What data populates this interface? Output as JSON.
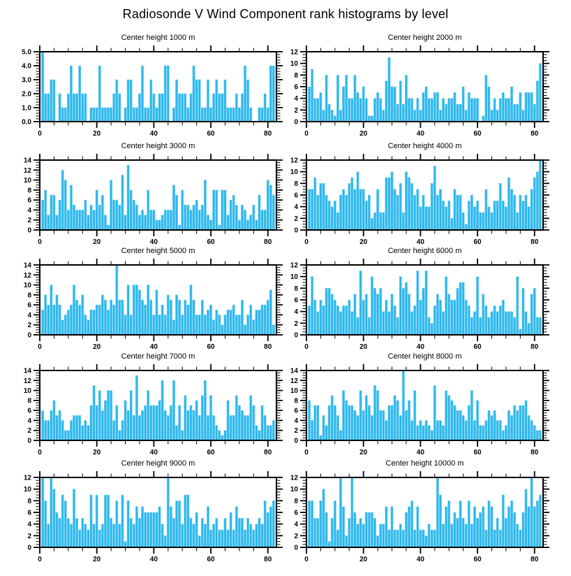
{
  "chart_data": {
    "type": "bar",
    "figure_title": "Radiosonde V Wind Component rank histograms by level",
    "bar_color": "#2AB7EE",
    "bar_edge_color": "#8FD9F4",
    "axis_color": "#000000",
    "background_color": "#ffffff",
    "grid": false,
    "legend": null,
    "xlabel": "",
    "ylabel": "",
    "xlim": [
      0,
      83
    ],
    "x_major_ticks": [
      0,
      20,
      40,
      60,
      80
    ],
    "x_minor_step": 5,
    "layout": "5 rows x 2 columns of rank histograms",
    "subplots": [
      {
        "title": "Center height 1000 m",
        "ymax": 5,
        "ystep": 1,
        "ydecimals": 1,
        "yminor_div": 5,
        "ytick_labels": [
          "0.0",
          "1.0",
          "2.0",
          "3.0",
          "4.0",
          "5.0"
        ],
        "values": [
          5,
          2,
          2,
          3,
          3,
          0,
          2,
          1,
          1,
          2,
          4,
          2,
          2,
          4,
          2,
          2,
          0,
          1,
          1,
          1,
          4,
          1,
          1,
          1,
          1,
          2,
          3,
          2,
          0,
          1,
          3,
          3,
          1,
          1,
          2,
          4,
          1,
          1,
          3,
          2,
          1,
          2,
          2,
          4,
          4,
          0,
          1,
          3,
          2,
          2,
          2,
          1,
          2,
          4,
          3,
          3,
          1,
          1,
          3,
          1,
          2,
          3,
          2,
          2,
          3,
          1,
          1,
          1,
          2,
          1,
          2,
          4,
          3,
          1,
          0,
          0,
          1,
          1,
          2,
          1,
          4,
          4
        ]
      },
      {
        "title": "Center height 2000 m",
        "ymax": 12,
        "ystep": 2,
        "ydecimals": 0,
        "yminor_div": 4,
        "ytick_labels": [
          "0",
          "2",
          "4",
          "6",
          "8",
          "10",
          "12"
        ],
        "values": [
          6,
          9,
          4,
          4,
          5,
          2,
          8,
          3,
          2,
          1,
          8,
          2,
          6,
          8,
          4,
          4,
          8,
          5,
          4,
          6,
          4,
          1,
          1,
          4,
          5,
          4,
          2,
          7,
          11,
          6,
          6,
          3,
          7,
          3,
          8,
          4,
          4,
          2,
          4,
          2,
          5,
          6,
          4,
          4,
          5,
          5,
          2,
          4,
          3,
          4,
          4,
          5,
          3,
          3,
          6,
          2,
          5,
          4,
          4,
          4,
          0,
          1,
          8,
          6,
          2,
          4,
          2,
          4,
          5,
          4,
          4,
          6,
          3,
          3,
          5,
          2,
          5,
          5,
          5,
          3,
          7,
          10
        ]
      },
      {
        "title": "Center height 3000 m",
        "ymax": 14,
        "ystep": 2,
        "ydecimals": 0,
        "yminor_div": 4,
        "ytick_labels": [
          "0",
          "2",
          "4",
          "6",
          "8",
          "10",
          "12",
          "14"
        ],
        "values": [
          6,
          8,
          3,
          7,
          7,
          3,
          6,
          12,
          10,
          4,
          9,
          5,
          4,
          4,
          4,
          6,
          3,
          5,
          4,
          8,
          5,
          7,
          3,
          1,
          10,
          6,
          6,
          5,
          11,
          3,
          13,
          8,
          6,
          5,
          3,
          4,
          3,
          8,
          4,
          4,
          2,
          2,
          3,
          4,
          4,
          4,
          9,
          7,
          1,
          8,
          5,
          5,
          4,
          5,
          6,
          4,
          5,
          10,
          3,
          2,
          8,
          8,
          1,
          8,
          8,
          3,
          6,
          7,
          5,
          2,
          5,
          4,
          2,
          3,
          5,
          2,
          7,
          4,
          4,
          10,
          9,
          7
        ]
      },
      {
        "title": "Center height 4000 m",
        "ymax": 12,
        "ystep": 2,
        "ydecimals": 0,
        "yminor_div": 4,
        "ytick_labels": [
          "0",
          "2",
          "4",
          "6",
          "8",
          "10",
          "12"
        ],
        "values": [
          7,
          7,
          9,
          6,
          8,
          8,
          6,
          5,
          4,
          5,
          3,
          6,
          7,
          6,
          8,
          9,
          7,
          10,
          7,
          7,
          5,
          6,
          2,
          3,
          7,
          3,
          3,
          9,
          9,
          10,
          7,
          6,
          8,
          3,
          10,
          9,
          8,
          6,
          7,
          4,
          6,
          4,
          4,
          8,
          11,
          6,
          7,
          5,
          4,
          5,
          2,
          7,
          6,
          6,
          3,
          1,
          5,
          6,
          4,
          5,
          3,
          3,
          7,
          4,
          3,
          5,
          5,
          8,
          5,
          4,
          9,
          7,
          6,
          3,
          6,
          5,
          6,
          4,
          7,
          9,
          10,
          12
        ]
      },
      {
        "title": "Center height 5000 m",
        "ymax": 14,
        "ystep": 2,
        "ydecimals": 0,
        "yminor_div": 4,
        "ytick_labels": [
          "0",
          "2",
          "4",
          "6",
          "8",
          "10",
          "12",
          "14"
        ],
        "values": [
          5,
          8,
          6,
          10,
          6,
          8,
          6,
          3,
          4,
          5,
          6,
          10,
          7,
          6,
          8,
          4,
          3,
          5,
          5,
          6,
          6,
          8,
          7,
          5,
          7,
          6,
          14,
          7,
          7,
          4,
          10,
          4,
          10,
          10,
          9,
          7,
          6,
          10,
          7,
          4,
          9,
          4,
          6,
          4,
          8,
          7,
          3,
          8,
          7,
          4,
          7,
          6,
          10,
          7,
          4,
          4,
          7,
          4,
          5,
          6,
          3,
          5,
          4,
          2,
          4,
          5,
          5,
          6,
          4,
          4,
          7,
          2,
          4,
          6,
          3,
          5,
          5,
          6,
          6,
          7,
          9,
          2
        ]
      },
      {
        "title": "Center height 6000 m",
        "ymax": 12,
        "ystep": 2,
        "ydecimals": 0,
        "yminor_div": 4,
        "ytick_labels": [
          "0",
          "2",
          "4",
          "6",
          "8",
          "10",
          "12"
        ],
        "values": [
          5,
          10,
          6,
          4,
          6,
          5,
          8,
          8,
          7,
          6,
          5,
          4,
          5,
          5,
          6,
          4,
          7,
          3,
          11,
          6,
          7,
          3,
          10,
          8,
          7,
          8,
          4,
          6,
          4,
          7,
          5,
          3,
          10,
          8,
          9,
          7,
          4,
          5,
          11,
          6,
          8,
          11,
          3,
          2,
          5,
          7,
          6,
          4,
          10,
          7,
          6,
          6,
          8,
          9,
          9,
          6,
          5,
          3,
          4,
          10,
          3,
          7,
          5,
          3,
          4,
          5,
          4,
          5,
          6,
          4,
          4,
          4,
          3,
          10,
          1,
          8,
          4,
          2,
          7,
          8,
          3,
          3
        ]
      },
      {
        "title": "Center height 7000 m",
        "ymax": 14,
        "ystep": 2,
        "ydecimals": 0,
        "yminor_div": 4,
        "ytick_labels": [
          "0",
          "2",
          "4",
          "6",
          "8",
          "10",
          "12",
          "14"
        ],
        "values": [
          6,
          4,
          4,
          6,
          8,
          5,
          6,
          4,
          2,
          2,
          4,
          5,
          5,
          5,
          3,
          4,
          3,
          7,
          11,
          7,
          10,
          6,
          8,
          10,
          10,
          4,
          7,
          2,
          4,
          8,
          6,
          10,
          5,
          13,
          5,
          6,
          7,
          10,
          7,
          7,
          7,
          8,
          12,
          6,
          5,
          7,
          12,
          3,
          7,
          2,
          9,
          6,
          7,
          6,
          8,
          5,
          9,
          12,
          5,
          9,
          5,
          3,
          2,
          1,
          2,
          8,
          5,
          5,
          9,
          7,
          6,
          5,
          5,
          9,
          7,
          3,
          2,
          7,
          5,
          3,
          3,
          4
        ]
      },
      {
        "title": "Center height 8000 m",
        "ymax": 14,
        "ystep": 2,
        "ydecimals": 0,
        "yminor_div": 4,
        "ytick_labels": [
          "0",
          "2",
          "4",
          "6",
          "8",
          "10",
          "12",
          "14"
        ],
        "values": [
          8,
          4,
          7,
          7,
          1,
          5,
          3,
          7,
          9,
          7,
          5,
          2,
          10,
          8,
          7,
          7,
          6,
          5,
          10,
          6,
          9,
          7,
          5,
          11,
          10,
          6,
          6,
          4,
          7,
          7,
          9,
          8,
          5,
          14,
          6,
          8,
          4,
          10,
          3,
          4,
          3,
          4,
          3,
          2,
          11,
          4,
          4,
          3,
          10,
          9,
          8,
          7,
          6,
          6,
          5,
          4,
          7,
          10,
          4,
          8,
          3,
          3,
          4,
          6,
          5,
          6,
          4,
          4,
          2,
          3,
          6,
          5,
          7,
          6,
          7,
          7,
          8,
          5,
          4,
          3,
          2,
          2
        ]
      },
      {
        "title": "Center height 9000 m",
        "ymax": 12,
        "ystep": 2,
        "ydecimals": 0,
        "yminor_div": 4,
        "ytick_labels": [
          "0",
          "2",
          "4",
          "6",
          "8",
          "10",
          "12"
        ],
        "values": [
          12,
          8,
          4,
          12,
          10,
          6,
          5,
          9,
          8,
          5,
          4,
          10,
          5,
          3,
          5,
          4,
          3,
          9,
          4,
          9,
          3,
          4,
          9,
          9,
          5,
          4,
          8,
          4,
          9,
          1,
          8,
          5,
          4,
          7,
          5,
          7,
          6,
          6,
          6,
          6,
          6,
          7,
          4,
          2,
          12,
          7,
          5,
          8,
          8,
          4,
          9,
          9,
          5,
          4,
          6,
          2,
          5,
          4,
          7,
          3,
          4,
          5,
          3,
          3,
          5,
          3,
          6,
          3,
          7,
          5,
          5,
          3,
          5,
          4,
          3,
          4,
          5,
          4,
          8,
          6,
          7,
          8
        ]
      },
      {
        "title": "Center height 10000 m",
        "ymax": 12,
        "ystep": 2,
        "ydecimals": 0,
        "yminor_div": 4,
        "ytick_labels": [
          "0",
          "2",
          "4",
          "6",
          "8",
          "10",
          "12"
        ],
        "values": [
          8,
          8,
          5,
          5,
          8,
          10,
          6,
          1,
          5,
          8,
          3,
          12,
          7,
          2,
          5,
          12,
          6,
          4,
          5,
          4,
          6,
          6,
          6,
          5,
          2,
          4,
          4,
          7,
          3,
          7,
          3,
          3,
          4,
          3,
          6,
          7,
          8,
          3,
          7,
          3,
          3,
          2,
          4,
          3,
          3,
          12,
          9,
          4,
          7,
          8,
          4,
          6,
          5,
          8,
          5,
          4,
          8,
          4,
          7,
          5,
          6,
          7,
          3,
          8,
          7,
          3,
          5,
          3,
          9,
          5,
          7,
          8,
          6,
          4,
          3,
          6,
          10,
          7,
          12,
          7,
          8,
          9
        ]
      }
    ]
  }
}
